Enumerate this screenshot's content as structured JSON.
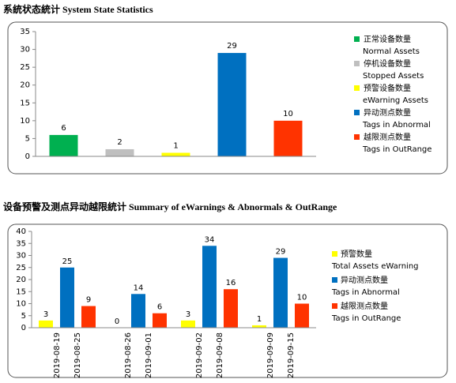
{
  "chart_data": [
    {
      "type": "bar",
      "title": "系統状态統计 System State Statistics",
      "categories": [
        [
          "正常设备数量",
          "Normal Assets"
        ],
        [
          "停机设备数量",
          "Stopped Assets"
        ],
        [
          "预警设备数量",
          "eWarning Assets"
        ],
        [
          "异动测点数量",
          "Tags in Abnormal"
        ],
        [
          "越限测点数量",
          "Tags in OutRange"
        ]
      ],
      "values": [
        6,
        2,
        1,
        29,
        10
      ],
      "colors": [
        "#00b050",
        "#bfbfbf",
        "#ffff00",
        "#0070c0",
        "#ff3300"
      ],
      "ylim": [
        0,
        35
      ],
      "yticks": [
        0,
        5,
        10,
        15,
        20,
        25,
        30,
        35
      ]
    },
    {
      "type": "bar",
      "title": "设备预警及测点异动越限統计 Summary of eWarnings & Abnormals & OutRange",
      "categories": [
        [
          "2019-08-19",
          "2019-08-25"
        ],
        [
          "2019-08-26",
          "2019-09-01"
        ],
        [
          "2019-09-02",
          "2019-09-08"
        ],
        [
          "2019-09-09",
          "2019-09-15"
        ]
      ],
      "series": [
        {
          "name": "预警数量",
          "name_en": "Total Assets eWarning",
          "color": "#ffff00",
          "values": [
            3,
            0,
            3,
            1
          ]
        },
        {
          "name": "异动测点数量",
          "name_en": "Tags in Abnormal",
          "color": "#0070c0",
          "values": [
            25,
            14,
            34,
            29
          ]
        },
        {
          "name": "越限测点数量",
          "name_en": "Tags in OutRange",
          "color": "#ff3300",
          "values": [
            9,
            6,
            16,
            10
          ]
        }
      ],
      "ylim": [
        0,
        40
      ],
      "yticks": [
        0,
        5,
        10,
        15,
        20,
        25,
        30,
        35,
        40
      ]
    }
  ]
}
